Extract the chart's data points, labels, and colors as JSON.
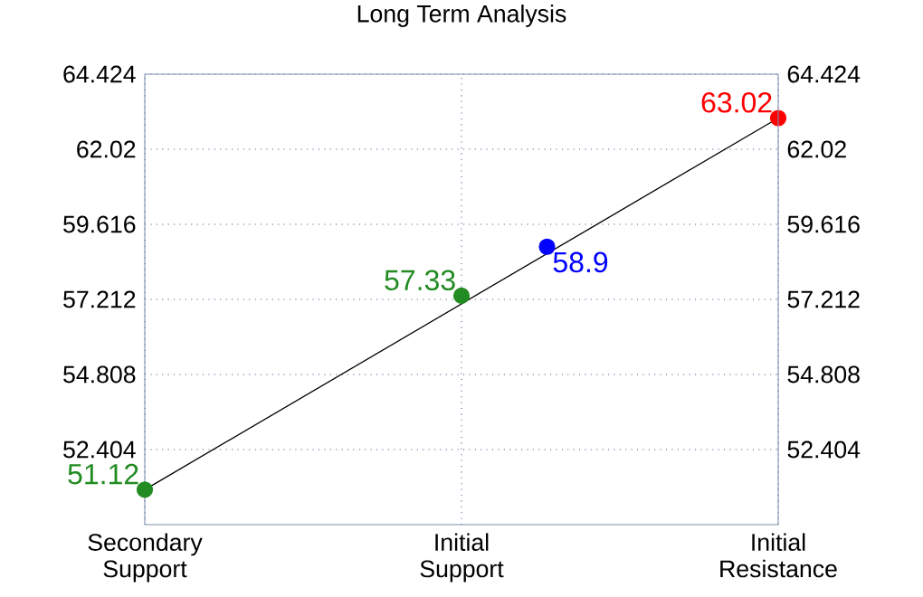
{
  "chart_data": {
    "type": "line",
    "title": "Long Term Analysis",
    "categories": [
      "Secondary Support",
      "Initial Support",
      "Initial Resistance"
    ],
    "ylim": [
      50.0,
      64.424
    ],
    "yticks": [
      52.404,
      54.808,
      57.212,
      59.616,
      62.02,
      64.424
    ],
    "y2lim": [
      50.0,
      64.424
    ],
    "y2ticks": [
      52.404,
      54.808,
      57.212,
      59.616,
      62.02,
      64.424
    ],
    "grid": true,
    "series": [
      {
        "color": "#000000",
        "marker": "none",
        "values": [
          51.12,
          null,
          63.02
        ]
      },
      {
        "type": "scatter",
        "color": "#228b22",
        "marker": "circle",
        "values": [
          51.12,
          57.33,
          null
        ],
        "value_labels": [
          "51.12",
          "57.33",
          null
        ]
      },
      {
        "type": "scatter",
        "color": "#0000ff",
        "marker": "circle",
        "values": [
          null,
          58.9,
          null
        ],
        "value_labels": [
          null,
          "58.9",
          null
        ]
      },
      {
        "type": "scatter",
        "color": "#ff0000",
        "marker": "circle",
        "values": [
          null,
          null,
          63.02
        ],
        "value_labels": [
          null,
          null,
          "63.02"
        ]
      }
    ]
  }
}
